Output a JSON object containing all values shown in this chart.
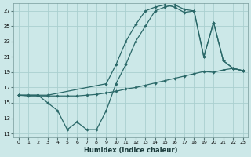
{
  "xlabel": "Humidex (Indice chaleur)",
  "bg_color": "#cce8e8",
  "grid_color": "#aacfcf",
  "line_color": "#2a6868",
  "ylim": [
    10.5,
    28
  ],
  "xlim": [
    -0.5,
    23.5
  ],
  "yticks": [
    11,
    13,
    15,
    17,
    19,
    21,
    23,
    25,
    27
  ],
  "xticks": [
    0,
    1,
    2,
    3,
    4,
    5,
    6,
    7,
    8,
    9,
    10,
    11,
    12,
    13,
    14,
    15,
    16,
    17,
    18,
    19,
    20,
    21,
    22,
    23
  ],
  "line1_x": [
    0,
    1,
    2,
    3,
    4,
    5,
    6,
    7,
    8,
    9,
    10,
    11,
    12,
    13,
    14,
    15,
    16,
    17,
    18,
    19,
    20,
    21,
    22,
    23
  ],
  "line1_y": [
    16.0,
    16.0,
    16.0,
    15.0,
    14.0,
    11.5,
    12.5,
    11.5,
    11.5,
    14.0,
    17.5,
    20.0,
    23.0,
    25.0,
    27.0,
    27.5,
    27.8,
    27.2,
    27.0,
    21.0,
    25.5,
    20.5,
    19.5,
    19.2
  ],
  "line2_x": [
    0,
    1,
    2,
    3,
    4,
    5,
    6,
    7,
    8,
    9,
    10,
    11,
    12,
    13,
    14,
    15,
    16,
    17,
    18,
    19,
    20,
    21,
    22,
    23
  ],
  "line2_y": [
    16.0,
    15.9,
    15.9,
    15.9,
    15.9,
    15.9,
    15.9,
    16.0,
    16.1,
    16.3,
    16.5,
    16.8,
    17.0,
    17.3,
    17.6,
    17.9,
    18.2,
    18.5,
    18.8,
    19.1,
    19.0,
    19.3,
    19.5,
    19.2
  ],
  "line3_x": [
    0,
    2,
    3,
    9,
    10,
    11,
    12,
    13,
    14,
    15,
    16,
    17,
    18,
    19,
    20,
    21,
    22,
    23
  ],
  "line3_y": [
    16.0,
    16.0,
    16.0,
    17.5,
    20.0,
    23.0,
    25.2,
    27.0,
    27.5,
    27.8,
    27.5,
    26.8,
    27.0,
    21.0,
    25.5,
    20.5,
    19.5,
    19.2
  ]
}
